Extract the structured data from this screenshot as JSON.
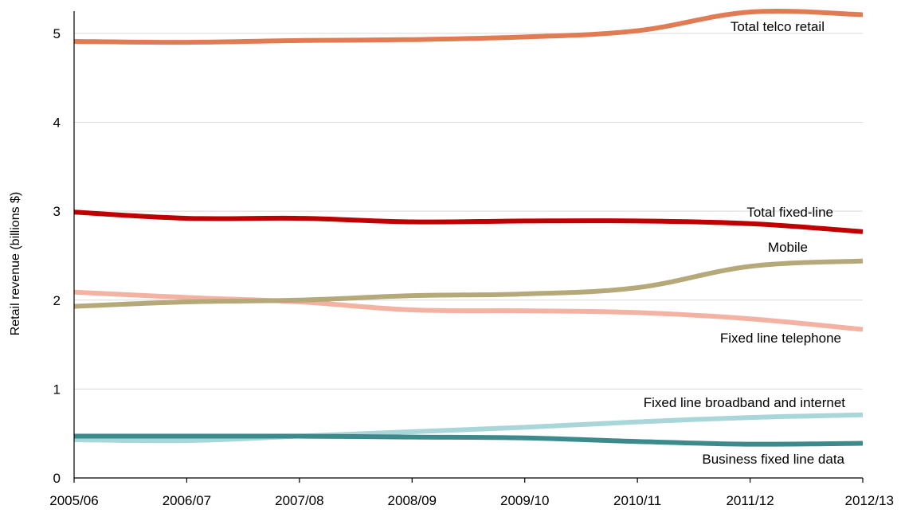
{
  "chart_data": {
    "type": "line",
    "title": "",
    "xlabel": "",
    "ylabel": "Retail revenue (billions $)",
    "ylim": [
      0,
      5.25
    ],
    "yticks": [
      "0",
      "1",
      "2",
      "3",
      "4",
      "5"
    ],
    "grid": true,
    "legend": "inline labels at series ends",
    "categories": [
      "2005/06",
      "2006/07",
      "2007/08",
      "2008/09",
      "2009/10",
      "2010/11",
      "2011/12",
      "2012/13"
    ],
    "series": [
      {
        "name": "Total telco retail",
        "color": "#e07b54",
        "values": [
          4.91,
          4.9,
          4.92,
          4.93,
          4.96,
          5.03,
          5.24,
          5.21
        ]
      },
      {
        "name": "Total fixed-line",
        "color": "#c00000",
        "values": [
          2.99,
          2.92,
          2.92,
          2.88,
          2.89,
          2.89,
          2.86,
          2.77
        ]
      },
      {
        "name": "Mobile",
        "color": "#b5a97a",
        "values": [
          1.93,
          1.98,
          2.0,
          2.05,
          2.07,
          2.14,
          2.38,
          2.44
        ]
      },
      {
        "name": "Fixed line telephone",
        "color": "#f4b2a3",
        "values": [
          2.09,
          2.03,
          1.98,
          1.89,
          1.88,
          1.86,
          1.79,
          1.67
        ]
      },
      {
        "name": "Fixed line broadband and internet",
        "color": "#a9d6d8",
        "values": [
          0.43,
          0.42,
          0.47,
          0.52,
          0.57,
          0.63,
          0.68,
          0.71
        ]
      },
      {
        "name": "Business fixed line data",
        "color": "#3d8a8c",
        "values": [
          0.47,
          0.47,
          0.47,
          0.46,
          0.45,
          0.41,
          0.38,
          0.39
        ]
      }
    ]
  }
}
